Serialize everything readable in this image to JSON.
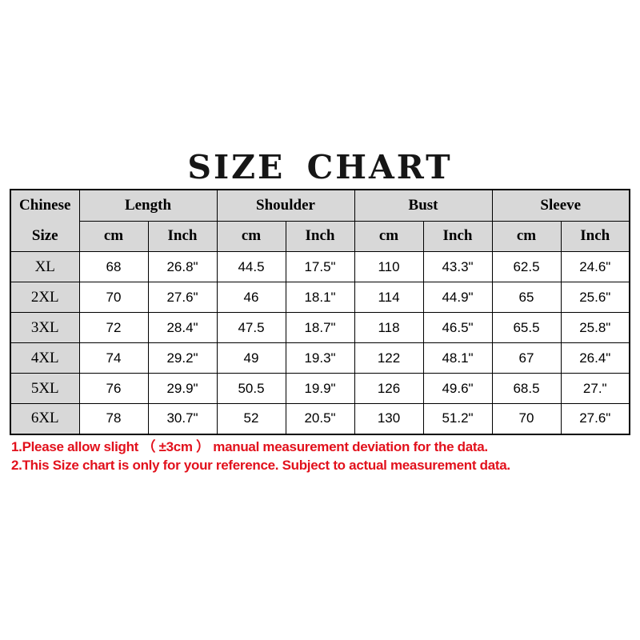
{
  "title": "SIZE CHART",
  "chart_data": {
    "type": "table",
    "title": "SIZE CHART",
    "corner_header": {
      "line1": "Chinese",
      "line2": "Size"
    },
    "column_groups": [
      {
        "label": "Length"
      },
      {
        "label": "Shoulder"
      },
      {
        "label": "Bust"
      },
      {
        "label": "Sleeve"
      }
    ],
    "sub_headers": [
      "cm",
      "Inch",
      "cm",
      "Inch",
      "cm",
      "Inch",
      "cm",
      "Inch"
    ],
    "rows": [
      {
        "size": "XL",
        "values": [
          "68",
          "26.8\"",
          "44.5",
          "17.5\"",
          "110",
          "43.3\"",
          "62.5",
          "24.6\""
        ]
      },
      {
        "size": "2XL",
        "values": [
          "70",
          "27.6\"",
          "46",
          "18.1\"",
          "114",
          "44.9\"",
          "65",
          "25.6\""
        ]
      },
      {
        "size": "3XL",
        "values": [
          "72",
          "28.4\"",
          "47.5",
          "18.7\"",
          "118",
          "46.5\"",
          "65.5",
          "25.8\""
        ]
      },
      {
        "size": "4XL",
        "values": [
          "74",
          "29.2\"",
          "49",
          "19.3\"",
          "122",
          "48.1\"",
          "67",
          "26.4\""
        ]
      },
      {
        "size": "5XL",
        "values": [
          "76",
          "29.9\"",
          "50.5",
          "19.9\"",
          "126",
          "49.6\"",
          "68.5",
          "27.\""
        ]
      },
      {
        "size": "6XL",
        "values": [
          "78",
          "30.7\"",
          "52",
          "20.5\"",
          "130",
          "51.2\"",
          "70",
          "27.6\""
        ]
      }
    ]
  },
  "notes": [
    "1.Please allow slight （ ±3cm ） manual measurement deviation for the data.",
    "2.This Size chart is only for your reference. Subject to actual measurement data."
  ],
  "colors": {
    "header_bg": "#d8d8d8",
    "border": "#000000",
    "note_red": "#e2111c",
    "text": "#000000",
    "background": "#ffffff"
  }
}
